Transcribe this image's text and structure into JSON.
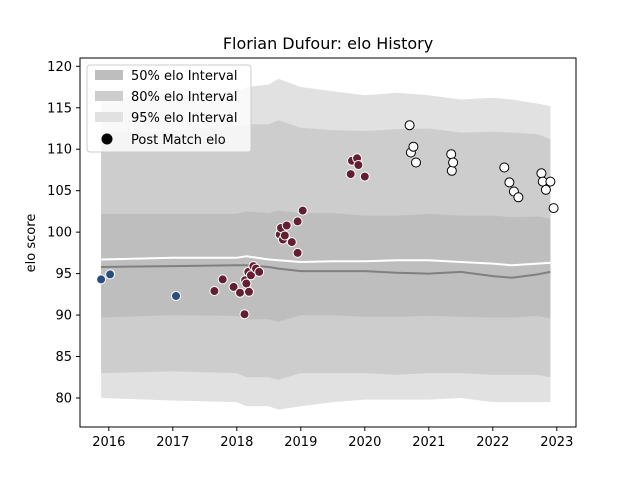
{
  "chart_data": {
    "type": "scatter",
    "title": "Florian Dufour: elo History",
    "xlabel": "",
    "ylabel": "elo score",
    "xlim": [
      2015.55,
      2023.3
    ],
    "ylim": [
      76.5,
      121
    ],
    "x_ticks": [
      2016,
      2017,
      2018,
      2019,
      2020,
      2021,
      2022,
      2023
    ],
    "x_tick_labels": [
      "2016",
      "2017",
      "2018",
      "2019",
      "2020",
      "2021",
      "2022",
      "2023"
    ],
    "y_ticks": [
      80,
      85,
      90,
      95,
      100,
      105,
      110,
      115,
      120
    ],
    "y_tick_labels": [
      "80",
      "85",
      "90",
      "95",
      "100",
      "105",
      "110",
      "115",
      "120"
    ],
    "grid": false,
    "legend": {
      "placement": "top-left",
      "entries": [
        "50% elo Interval",
        "80% elo Interval",
        "95% elo Interval",
        "Post Match elo"
      ]
    },
    "colors": {
      "band95": "#e1e1e1",
      "band80": "#cdcdcd",
      "band50": "#bebebe",
      "median_line": "#808080",
      "mean_line": "#ffffff",
      "point_blue": "#2b4c7e",
      "point_maroon": "#641e32",
      "point_white": "#ffffff"
    },
    "bands": {
      "x": [
        2015.88,
        2017.0,
        2018.0,
        2018.15,
        2018.5,
        2018.65,
        2019.0,
        2019.5,
        2020.0,
        2020.5,
        2021.0,
        2021.5,
        2022.0,
        2022.3,
        2022.7,
        2022.9
      ],
      "p95_upper": [
        116.0,
        116.5,
        117.0,
        117.5,
        117.8,
        118.5,
        117.5,
        117.0,
        116.5,
        116.8,
        116.5,
        116.0,
        116.2,
        116.0,
        115.5,
        115.2
      ],
      "p95_lower": [
        80.0,
        79.7,
        79.5,
        79.0,
        79.0,
        78.6,
        79.0,
        79.5,
        79.8,
        79.8,
        79.8,
        80.0,
        79.5,
        79.5,
        79.5,
        79.5
      ],
      "p80_upper": [
        112.0,
        112.2,
        112.8,
        113.0,
        113.0,
        113.5,
        112.6,
        112.3,
        112.2,
        112.4,
        112.5,
        112.0,
        112.1,
        112.0,
        111.8,
        111.2
      ],
      "p80_lower": [
        83.0,
        83.2,
        83.0,
        82.5,
        82.5,
        82.2,
        83.0,
        83.0,
        83.0,
        82.8,
        83.0,
        83.0,
        82.8,
        82.8,
        82.8,
        82.5
      ],
      "p50_upper": [
        102.2,
        102.2,
        102.2,
        102.5,
        102.3,
        102.6,
        102.3,
        102.3,
        102.0,
        102.0,
        102.2,
        102.0,
        102.0,
        101.8,
        101.9,
        101.6
      ],
      "p50_lower": [
        89.7,
        90.0,
        89.9,
        89.5,
        89.5,
        89.2,
        90.0,
        90.0,
        89.8,
        89.8,
        89.9,
        89.8,
        89.7,
        89.7,
        89.9,
        89.6
      ],
      "median": [
        95.8,
        95.9,
        96.0,
        96.0,
        95.8,
        95.6,
        95.3,
        95.3,
        95.3,
        95.1,
        95.0,
        95.2,
        94.7,
        94.5,
        94.9,
        95.2
      ],
      "mean": [
        96.7,
        96.9,
        96.9,
        97.1,
        96.7,
        96.6,
        96.4,
        96.5,
        96.5,
        96.6,
        96.6,
        96.4,
        96.2,
        96.0,
        96.2,
        96.3
      ]
    },
    "series": [
      {
        "color_key": "point_blue",
        "points": [
          {
            "x": 2015.88,
            "y": 94.3
          },
          {
            "x": 2016.02,
            "y": 94.9
          },
          {
            "x": 2017.05,
            "y": 92.3
          }
        ]
      },
      {
        "color_key": "point_maroon",
        "points": [
          {
            "x": 2017.65,
            "y": 92.9
          },
          {
            "x": 2017.78,
            "y": 94.3
          },
          {
            "x": 2017.95,
            "y": 93.4
          },
          {
            "x": 2018.05,
            "y": 92.7
          },
          {
            "x": 2018.13,
            "y": 94.2
          },
          {
            "x": 2018.15,
            "y": 93.8
          },
          {
            "x": 2018.18,
            "y": 95.2
          },
          {
            "x": 2018.19,
            "y": 92.8
          },
          {
            "x": 2018.22,
            "y": 94.8
          },
          {
            "x": 2018.26,
            "y": 95.9
          },
          {
            "x": 2018.3,
            "y": 95.6
          },
          {
            "x": 2018.35,
            "y": 95.2
          },
          {
            "x": 2018.12,
            "y": 90.1
          },
          {
            "x": 2018.67,
            "y": 99.7
          },
          {
            "x": 2018.69,
            "y": 100.5
          },
          {
            "x": 2018.72,
            "y": 99.1
          },
          {
            "x": 2018.75,
            "y": 99.6
          },
          {
            "x": 2018.78,
            "y": 100.8
          },
          {
            "x": 2018.86,
            "y": 98.8
          },
          {
            "x": 2018.95,
            "y": 97.5
          },
          {
            "x": 2018.95,
            "y": 101.3
          },
          {
            "x": 2019.03,
            "y": 102.6
          },
          {
            "x": 2019.78,
            "y": 107.0
          },
          {
            "x": 2019.8,
            "y": 108.6
          },
          {
            "x": 2019.88,
            "y": 108.9
          },
          {
            "x": 2019.9,
            "y": 108.1
          },
          {
            "x": 2020.0,
            "y": 106.7
          }
        ]
      },
      {
        "color_key": "point_white",
        "points": [
          {
            "x": 2020.7,
            "y": 112.9
          },
          {
            "x": 2020.72,
            "y": 109.6
          },
          {
            "x": 2020.76,
            "y": 110.3
          },
          {
            "x": 2020.8,
            "y": 108.4
          },
          {
            "x": 2021.35,
            "y": 109.4
          },
          {
            "x": 2021.36,
            "y": 107.4
          },
          {
            "x": 2021.38,
            "y": 108.4
          },
          {
            "x": 2022.18,
            "y": 107.8
          },
          {
            "x": 2022.26,
            "y": 106.0
          },
          {
            "x": 2022.33,
            "y": 104.9
          },
          {
            "x": 2022.4,
            "y": 104.2
          },
          {
            "x": 2022.76,
            "y": 107.1
          },
          {
            "x": 2022.78,
            "y": 106.1
          },
          {
            "x": 2022.83,
            "y": 105.1
          },
          {
            "x": 2022.9,
            "y": 106.1
          },
          {
            "x": 2022.95,
            "y": 102.9
          }
        ]
      }
    ]
  }
}
